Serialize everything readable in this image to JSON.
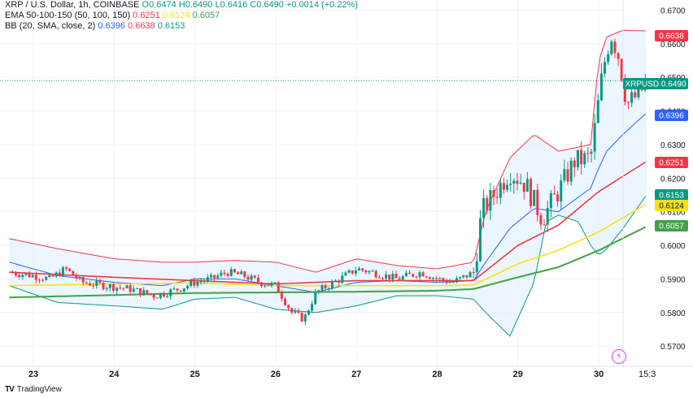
{
  "legend": {
    "symbol": "XRP / U.S. Dollar, 1h, COINBASE",
    "open": "O0.6474",
    "high": "H0.6490",
    "low": "L0.6416",
    "close": "C0.6490",
    "change": "+0.0014 (+0.22%)",
    "ema_title": "EMA 50-100-150 (50, 100, 150)",
    "ema_values": [
      "0.6251",
      "0.6124",
      "0.6057"
    ],
    "bb_title": "BB (20, SMA, close, 2)",
    "bb_values": [
      "0.6396",
      "0.6638",
      "0.6153"
    ]
  },
  "brand": "TradingView",
  "colors": {
    "up": "#089981",
    "down": "#f23645",
    "ema50": "#f23645",
    "ema100": "#f7e21b",
    "ema150": "#43a047",
    "bb_basis": "#2962ff",
    "bb_upper": "#f23645",
    "bb_lower": "#089981",
    "bb_fill": "#e3f2fd"
  },
  "chart_data": {
    "type": "candlestick",
    "title": "XRP / U.S. Dollar, 1h, COINBASE",
    "ylim": [
      0.564,
      0.673
    ],
    "y_ticks": [
      "0.5700",
      "0.5800",
      "0.5900",
      "0.6000",
      "0.6100",
      "0.6200",
      "0.6300",
      "0.6400",
      "0.6500",
      "0.6600",
      "0.6700"
    ],
    "x_ticks": [
      {
        "label": "23",
        "day": 0
      },
      {
        "label": "24",
        "day": 1
      },
      {
        "label": "25",
        "day": 2
      },
      {
        "label": "26",
        "day": 3
      },
      {
        "label": "27",
        "day": 4
      },
      {
        "label": "28",
        "day": 5
      },
      {
        "label": "29",
        "day": 6
      },
      {
        "label": "30",
        "day": 7
      },
      {
        "label": "15:3",
        "day": 7.6
      }
    ],
    "price_labels": [
      {
        "name": "bb-upper",
        "text": "0.6638",
        "value": 0.6638,
        "color": "#f23645"
      },
      {
        "name": "last-price",
        "text": "XRPUSD  0.6490",
        "value": 0.649,
        "color": "#089981"
      },
      {
        "name": "bb-basis",
        "text": "0.6396",
        "value": 0.6396,
        "color": "#2962ff"
      },
      {
        "name": "ema50",
        "text": "0.6251",
        "value": 0.6251,
        "color": "#f23645"
      },
      {
        "name": "bb-lower",
        "text": "0.6153",
        "value": 0.6153,
        "color": "#089981"
      },
      {
        "name": "ema100",
        "text": "0.6124",
        "value": 0.6124,
        "color": "#f7e21b"
      },
      {
        "name": "ema150",
        "text": "0.6057",
        "value": 0.6057,
        "color": "#43a047"
      }
    ],
    "last_price": 0.649,
    "close_path": [
      [
        -0.3,
        0.592
      ],
      [
        0.0,
        0.591
      ],
      [
        0.2,
        0.59
      ],
      [
        0.4,
        0.593
      ],
      [
        0.6,
        0.589
      ],
      [
        0.9,
        0.588
      ],
      [
        1.2,
        0.587
      ],
      [
        1.5,
        0.585
      ],
      [
        1.8,
        0.587
      ],
      [
        2.0,
        0.589
      ],
      [
        2.2,
        0.59
      ],
      [
        2.4,
        0.592
      ],
      [
        2.6,
        0.591
      ],
      [
        2.8,
        0.589
      ],
      [
        3.0,
        0.588
      ],
      [
        3.2,
        0.58
      ],
      [
        3.35,
        0.578
      ],
      [
        3.5,
        0.586
      ],
      [
        3.8,
        0.59
      ],
      [
        4.0,
        0.593
      ],
      [
        4.2,
        0.592
      ],
      [
        4.5,
        0.59
      ],
      [
        4.8,
        0.592
      ],
      [
        5.0,
        0.59
      ],
      [
        5.2,
        0.589
      ],
      [
        5.45,
        0.592
      ],
      [
        5.5,
        0.6
      ],
      [
        5.55,
        0.61
      ],
      [
        5.7,
        0.615
      ],
      [
        5.9,
        0.622
      ],
      [
        6.1,
        0.618
      ],
      [
        6.3,
        0.608
      ],
      [
        6.5,
        0.616
      ],
      [
        6.7,
        0.625
      ],
      [
        6.9,
        0.626
      ],
      [
        7.05,
        0.652
      ],
      [
        7.15,
        0.663
      ],
      [
        7.25,
        0.656
      ],
      [
        7.35,
        0.642
      ],
      [
        7.5,
        0.645
      ],
      [
        7.6,
        0.649
      ]
    ],
    "ema50": [
      [
        -0.3,
        0.592
      ],
      [
        1.0,
        0.5905
      ],
      [
        2.0,
        0.5895
      ],
      [
        3.0,
        0.5885
      ],
      [
        4.0,
        0.5895
      ],
      [
        5.0,
        0.5895
      ],
      [
        5.45,
        0.5895
      ],
      [
        6.0,
        0.6
      ],
      [
        6.5,
        0.606
      ],
      [
        7.0,
        0.616
      ],
      [
        7.6,
        0.6251
      ]
    ],
    "ema100": [
      [
        -0.3,
        0.588
      ],
      [
        1.0,
        0.5885
      ],
      [
        2.0,
        0.5888
      ],
      [
        3.0,
        0.588
      ],
      [
        4.0,
        0.588
      ],
      [
        5.0,
        0.588
      ],
      [
        5.45,
        0.5882
      ],
      [
        6.0,
        0.5945
      ],
      [
        6.5,
        0.5985
      ],
      [
        7.0,
        0.604
      ],
      [
        7.6,
        0.6124
      ]
    ],
    "ema150": [
      [
        -0.3,
        0.5845
      ],
      [
        1.0,
        0.5852
      ],
      [
        2.0,
        0.5858
      ],
      [
        3.0,
        0.586
      ],
      [
        4.0,
        0.5862
      ],
      [
        5.0,
        0.5865
      ],
      [
        5.45,
        0.587
      ],
      [
        6.0,
        0.5905
      ],
      [
        6.5,
        0.5935
      ],
      [
        7.0,
        0.5985
      ],
      [
        7.6,
        0.6057
      ]
    ],
    "bb_upper": [
      [
        -0.3,
        0.602
      ],
      [
        0.3,
        0.599
      ],
      [
        1.0,
        0.596
      ],
      [
        1.6,
        0.595
      ],
      [
        2.0,
        0.595
      ],
      [
        2.5,
        0.5955
      ],
      [
        3.0,
        0.595
      ],
      [
        3.5,
        0.592
      ],
      [
        4.0,
        0.596
      ],
      [
        4.5,
        0.594
      ],
      [
        5.0,
        0.593
      ],
      [
        5.45,
        0.595
      ],
      [
        5.6,
        0.61
      ],
      [
        5.9,
        0.626
      ],
      [
        6.2,
        0.633
      ],
      [
        6.5,
        0.628
      ],
      [
        6.9,
        0.63
      ],
      [
        7.0,
        0.655
      ],
      [
        7.1,
        0.662
      ],
      [
        7.3,
        0.664
      ],
      [
        7.6,
        0.6638
      ]
    ],
    "bb_basis": [
      [
        -0.3,
        0.595
      ],
      [
        0.3,
        0.591
      ],
      [
        1.0,
        0.589
      ],
      [
        1.6,
        0.588
      ],
      [
        2.0,
        0.59
      ],
      [
        2.5,
        0.59
      ],
      [
        3.0,
        0.588
      ],
      [
        3.5,
        0.586
      ],
      [
        4.0,
        0.589
      ],
      [
        4.5,
        0.5895
      ],
      [
        5.0,
        0.589
      ],
      [
        5.45,
        0.5895
      ],
      [
        5.6,
        0.595
      ],
      [
        5.9,
        0.605
      ],
      [
        6.2,
        0.611
      ],
      [
        6.5,
        0.61
      ],
      [
        6.9,
        0.617
      ],
      [
        7.0,
        0.623
      ],
      [
        7.1,
        0.628
      ],
      [
        7.3,
        0.633
      ],
      [
        7.6,
        0.6396
      ]
    ],
    "bb_lower": [
      [
        -0.3,
        0.588
      ],
      [
        0.3,
        0.583
      ],
      [
        1.0,
        0.582
      ],
      [
        1.6,
        0.581
      ],
      [
        2.0,
        0.584
      ],
      [
        2.5,
        0.5845
      ],
      [
        3.0,
        0.581
      ],
      [
        3.5,
        0.58
      ],
      [
        4.0,
        0.582
      ],
      [
        4.5,
        0.585
      ],
      [
        5.0,
        0.585
      ],
      [
        5.45,
        0.584
      ],
      [
        5.6,
        0.58
      ],
      [
        5.9,
        0.573
      ],
      [
        6.2,
        0.589
      ],
      [
        6.35,
        0.607
      ],
      [
        6.5,
        0.609
      ],
      [
        6.75,
        0.607
      ],
      [
        6.9,
        0.6
      ],
      [
        7.0,
        0.597
      ],
      [
        7.1,
        0.599
      ],
      [
        7.3,
        0.605
      ],
      [
        7.6,
        0.6153
      ]
    ]
  }
}
